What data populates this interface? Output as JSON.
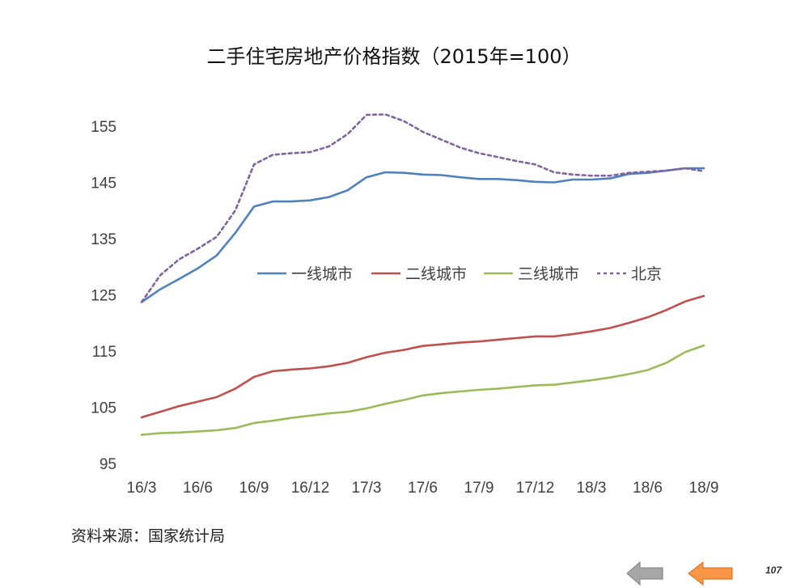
{
  "chart_data": {
    "type": "line",
    "title": "二手住宅房地产价格指数（2015年=100）",
    "xlabel": "",
    "ylabel": "",
    "ylim": [
      95,
      155
    ],
    "yticks": [
      95,
      105,
      115,
      125,
      135,
      145,
      155
    ],
    "x": [
      "16/3",
      "16/4",
      "16/5",
      "16/6",
      "16/7",
      "16/8",
      "16/9",
      "16/10",
      "16/11",
      "16/12",
      "17/1",
      "17/2",
      "17/3",
      "17/4",
      "17/5",
      "17/6",
      "17/7",
      "17/8",
      "17/9",
      "17/10",
      "17/11",
      "17/12",
      "18/1",
      "18/2",
      "18/3",
      "18/4",
      "18/5",
      "18/6",
      "18/7",
      "18/8",
      "18/9"
    ],
    "xtick_labels": [
      "16/3",
      "16/6",
      "16/9",
      "16/12",
      "17/3",
      "17/6",
      "17/9",
      "17/12",
      "18/3",
      "18/6",
      "18/9"
    ],
    "grid": false,
    "legend_position": "center",
    "series": [
      {
        "name": "一线城市",
        "color": "#4f81bd",
        "dash": false,
        "values": [
          123.7,
          126.0,
          127.8,
          129.7,
          132.0,
          136.0,
          140.7,
          141.6,
          141.6,
          141.8,
          142.4,
          143.6,
          145.9,
          146.8,
          146.7,
          146.4,
          146.3,
          145.9,
          145.6,
          145.6,
          145.4,
          145.1,
          145.0,
          145.5,
          145.5,
          145.7,
          146.5,
          146.7,
          147.1,
          147.5,
          147.5
        ]
      },
      {
        "name": "二线城市",
        "color": "#c0504d",
        "dash": false,
        "values": [
          103.2,
          104.2,
          105.2,
          106.0,
          106.8,
          108.3,
          110.4,
          111.4,
          111.7,
          111.9,
          112.3,
          112.9,
          113.9,
          114.7,
          115.2,
          115.9,
          116.2,
          116.5,
          116.7,
          117.0,
          117.3,
          117.6,
          117.6,
          118.0,
          118.5,
          119.1,
          120.0,
          121.0,
          122.3,
          123.8,
          124.8
        ]
      },
      {
        "name": "三线城市",
        "color": "#9bbb59",
        "dash": false,
        "values": [
          100.1,
          100.4,
          100.5,
          100.7,
          100.9,
          101.3,
          102.2,
          102.6,
          103.1,
          103.5,
          103.9,
          104.2,
          104.8,
          105.6,
          106.3,
          107.1,
          107.5,
          107.8,
          108.1,
          108.3,
          108.6,
          108.9,
          109.0,
          109.4,
          109.8,
          110.3,
          110.9,
          111.6,
          112.9,
          114.8,
          116.0
        ]
      },
      {
        "name": "北京",
        "color": "#8064a2",
        "dash": true,
        "values": [
          123.7,
          128.5,
          131.3,
          133.2,
          135.3,
          140.0,
          148.2,
          149.9,
          150.2,
          150.4,
          151.4,
          153.6,
          157.0,
          157.1,
          155.9,
          154.0,
          152.6,
          151.2,
          150.2,
          149.5,
          148.8,
          148.2,
          146.8,
          146.4,
          146.2,
          146.2,
          146.7,
          146.9,
          147.1,
          147.5,
          147.0
        ]
      }
    ]
  },
  "source_text": "资料来源：国家统计局",
  "nav": {
    "prev_icon": "left-arrow-icon",
    "prev_color": "#a6a6a6",
    "next_icon": "left-arrow-icon",
    "next_color": "#f79646"
  },
  "page_number": "107"
}
